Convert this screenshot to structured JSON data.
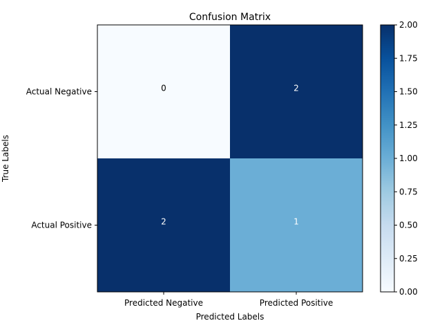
{
  "chart_data": {
    "type": "heatmap",
    "title": "Confusion Matrix",
    "xlabel": "Predicted Labels",
    "ylabel": "True Labels",
    "x_categories": [
      "Predicted Negative",
      "Predicted Positive"
    ],
    "y_categories": [
      "Actual Negative",
      "Actual Positive"
    ],
    "values": [
      [
        0,
        2
      ],
      [
        2,
        1
      ]
    ],
    "colormap": "Blues",
    "vmin": 0,
    "vmax": 2,
    "colorbar_ticks": [
      "0.00",
      "0.25",
      "0.50",
      "0.75",
      "1.00",
      "1.25",
      "1.50",
      "1.75",
      "2.00"
    ],
    "colors": {
      "low": "#f7fbff",
      "mid": "#6baed6",
      "high": "#08306b",
      "annot_on_dark": "#ffffff",
      "annot_on_light": "#000000"
    }
  }
}
